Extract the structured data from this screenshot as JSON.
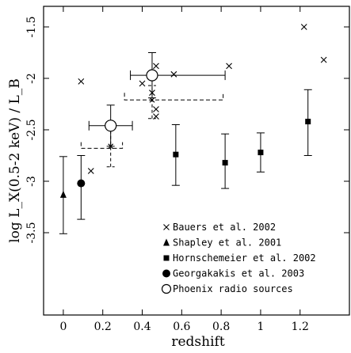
{
  "chart_data": {
    "type": "scatter",
    "xlabel": "redshift",
    "ylabel": "log L_X(0.5-2 keV) / L_B",
    "xlim": [
      -0.1,
      1.45
    ],
    "ylim": [
      -4.3,
      -1.3
    ],
    "x_ticks": [
      0,
      0.2,
      0.4,
      0.6,
      0.8,
      1,
      1.2
    ],
    "x_tick_labels": [
      "0",
      "0.2",
      "0.4",
      "0.6",
      "0.8",
      "1",
      "1.2"
    ],
    "y_ticks": [
      -1.5,
      -2,
      -2.5,
      -3,
      -3.5
    ],
    "y_tick_labels": [
      "-1.5",
      "-2",
      "-2.5",
      "-3",
      "-3.5"
    ],
    "legend_position": "bottom-center",
    "series": [
      {
        "name": "Bauers et al. 2002",
        "marker": "x",
        "points": [
          {
            "x": 0.09,
            "y": -2.03
          },
          {
            "x": 0.14,
            "y": -2.9
          },
          {
            "x": 0.4,
            "y": -2.05
          },
          {
            "x": 0.45,
            "y": -2.14
          },
          {
            "x": 0.47,
            "y": -2.3
          },
          {
            "x": 0.47,
            "y": -2.37
          },
          {
            "x": 0.47,
            "y": -1.88
          },
          {
            "x": 0.56,
            "y": -1.96
          },
          {
            "x": 0.84,
            "y": -1.88
          },
          {
            "x": 1.22,
            "y": -1.5
          },
          {
            "x": 1.32,
            "y": -1.82
          }
        ]
      },
      {
        "name": "Shapley et al. 2001",
        "marker": "triangle",
        "points": [
          {
            "x": 0.0,
            "y": -3.13,
            "err_low": 0.38,
            "err_high": 0.37
          }
        ]
      },
      {
        "name": "Hornschemeier et al. 2002",
        "marker": "square",
        "points": [
          {
            "x": 0.57,
            "y": -2.74,
            "err_low": 0.3,
            "err_high": 0.29
          },
          {
            "x": 0.82,
            "y": -2.82,
            "err_low": 0.25,
            "err_high": 0.28
          },
          {
            "x": 1.0,
            "y": -2.72,
            "err_low": 0.19,
            "err_high": 0.19
          },
          {
            "x": 1.24,
            "y": -2.42,
            "err_low": 0.33,
            "err_high": 0.31
          }
        ]
      },
      {
        "name": "Georgakakis et al. 2003",
        "marker": "filled-circle",
        "points": [
          {
            "x": 0.09,
            "y": -3.02,
            "err_low": 0.35,
            "err_high": 0.27
          }
        ]
      },
      {
        "name": "Phoenix radio sources",
        "marker": "open-circle",
        "points": [
          {
            "x": 0.24,
            "y": -2.46,
            "xerr_low": 0.11,
            "xerr_high": 0.11,
            "err_low": 0.2,
            "err_high": 0.2
          },
          {
            "x": 0.45,
            "y": -1.97,
            "xerr_low": 0.11,
            "xerr_high": 0.37,
            "err_low": 0.22,
            "err_high": 0.22
          }
        ],
        "dashed_boxes": [
          {
            "x0": 0.09,
            "x1": 0.3,
            "y0": -2.68,
            "y1": -2.62
          },
          {
            "x0": 0.31,
            "x1": 0.81,
            "y0": -2.21,
            "y1": -2.14
          }
        ],
        "dashed_points": [
          {
            "x": 0.24,
            "y": -2.66,
            "err_low": 0.2,
            "err_high": 0.2
          },
          {
            "x": 0.45,
            "y": -2.21,
            "err_low": 0.18,
            "err_high": 0.14
          }
        ]
      }
    ]
  }
}
